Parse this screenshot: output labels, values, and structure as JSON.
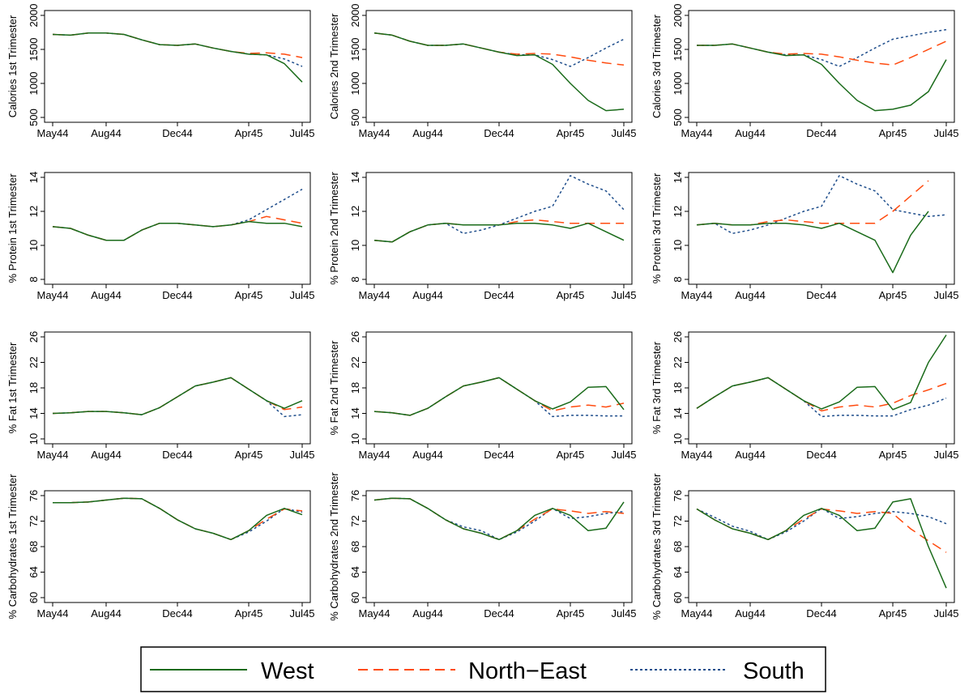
{
  "chart_data": {
    "type": "line",
    "x": [
      "May44",
      "Jun44",
      "Jul44",
      "Aug44",
      "Sep44",
      "Oct44",
      "Nov44",
      "Dec44",
      "Jan45",
      "Feb45",
      "Mar45",
      "Apr45",
      "May45",
      "Jun45",
      "Jul45"
    ],
    "x_ticks": [
      "May44",
      "Aug44",
      "Dec44",
      "Apr45",
      "Jul45"
    ],
    "legend": {
      "placement": "bottom",
      "entries": [
        {
          "name": "West",
          "color": "#1a6b1a",
          "dash": "solid"
        },
        {
          "name": "North−East",
          "color": "#ff4b0f",
          "dash": "long-dash"
        },
        {
          "name": "South",
          "color": "#1f4e8c",
          "dash": "dotted"
        }
      ]
    },
    "panels": [
      {
        "ylabel": "Calories 1st Trimester",
        "ylim": [
          500,
          2000
        ],
        "yticks": [
          500,
          1000,
          1500,
          2000
        ],
        "series": [
          {
            "name": "West",
            "values": [
              1720,
              1710,
              1740,
              1740,
              1720,
              1640,
              1570,
              1560,
              1580,
              1520,
              1470,
              1430,
              1420,
              1290,
              1020
            ]
          },
          {
            "name": "North−East",
            "values": [
              1720,
              1710,
              1740,
              1740,
              1720,
              1640,
              1570,
              1560,
              1580,
              1520,
              1470,
              1440,
              1450,
              1430,
              1380
            ]
          },
          {
            "name": "South",
            "values": [
              1720,
              1710,
              1740,
              1740,
              1720,
              1640,
              1570,
              1560,
              1580,
              1520,
              1470,
              1430,
              1420,
              1360,
              1250
            ]
          }
        ]
      },
      {
        "ylabel": "Calories 2nd Trimester",
        "ylim": [
          500,
          2000
        ],
        "yticks": [
          500,
          1000,
          1500,
          2000
        ],
        "series": [
          {
            "name": "West",
            "values": [
              1740,
              1710,
              1620,
              1560,
              1560,
              1580,
              1520,
              1460,
              1410,
              1420,
              1280,
              1000,
              750,
              600,
              620
            ]
          },
          {
            "name": "North−East",
            "values": [
              1740,
              1710,
              1620,
              1560,
              1560,
              1580,
              1520,
              1460,
              1430,
              1440,
              1430,
              1390,
              1340,
              1300,
              1270
            ]
          },
          {
            "name": "South",
            "values": [
              1740,
              1710,
              1620,
              1560,
              1560,
              1580,
              1520,
              1460,
              1420,
              1420,
              1350,
              1250,
              1380,
              1520,
              1650
            ]
          }
        ]
      },
      {
        "ylabel": "Calories 3rd Trimester",
        "ylim": [
          500,
          2000
        ],
        "yticks": [
          500,
          1000,
          1500,
          2000
        ],
        "series": [
          {
            "name": "West",
            "values": [
              1560,
              1560,
              1580,
              1520,
              1460,
              1410,
              1420,
              1280,
              1000,
              750,
              600,
              620,
              680,
              880,
              1350
            ]
          },
          {
            "name": "North−East",
            "values": [
              1560,
              1560,
              1580,
              1520,
              1460,
              1430,
              1440,
              1430,
              1390,
              1340,
              1300,
              1270,
              1380,
              1500,
              1620
            ]
          },
          {
            "name": "South",
            "values": [
              1560,
              1560,
              1580,
              1520,
              1460,
              1420,
              1420,
              1350,
              1250,
              1380,
              1520,
              1650,
              1700,
              1750,
              1790
            ]
          }
        ]
      },
      {
        "ylabel": "% Protein 1st Trimester",
        "ylim": [
          8,
          14
        ],
        "yticks": [
          8,
          10,
          12,
          14
        ],
        "series": [
          {
            "name": "West",
            "values": [
              11.1,
              11.0,
              10.6,
              10.3,
              10.3,
              10.9,
              11.3,
              11.3,
              11.2,
              11.1,
              11.2,
              11.4,
              11.3,
              11.3,
              11.1
            ]
          },
          {
            "name": "North−East",
            "values": [
              11.1,
              11.0,
              10.6,
              10.3,
              10.3,
              10.9,
              11.3,
              11.3,
              11.2,
              11.1,
              11.2,
              11.4,
              11.7,
              11.5,
              11.3
            ]
          },
          {
            "name": "South",
            "values": [
              11.1,
              11.0,
              10.6,
              10.3,
              10.3,
              10.9,
              11.3,
              11.3,
              11.2,
              11.1,
              11.2,
              11.5,
              12.1,
              12.7,
              13.3
            ]
          }
        ]
      },
      {
        "ylabel": "% Protein 2nd Trimester",
        "ylim": [
          8,
          14
        ],
        "yticks": [
          8,
          10,
          12,
          14
        ],
        "series": [
          {
            "name": "West",
            "values": [
              10.3,
              10.2,
              10.8,
              11.2,
              11.3,
              11.2,
              11.2,
              11.2,
              11.3,
              11.3,
              11.2,
              11.0,
              11.3,
              10.8,
              10.3
            ]
          },
          {
            "name": "North−East",
            "values": [
              10.3,
              10.2,
              10.8,
              11.2,
              11.3,
              11.2,
              11.2,
              11.2,
              11.4,
              11.5,
              11.4,
              11.3,
              11.3,
              11.3,
              11.3
            ]
          },
          {
            "name": "South",
            "values": [
              10.3,
              10.2,
              10.8,
              11.2,
              11.3,
              10.7,
              10.9,
              11.2,
              11.6,
              12.0,
              12.3,
              14.1,
              13.6,
              13.2,
              12.1
            ]
          }
        ]
      },
      {
        "ylabel": "% Protein 3rd Trimester",
        "ylim": [
          8,
          14
        ],
        "yticks": [
          8,
          10,
          12,
          14
        ],
        "series": [
          {
            "name": "West",
            "values": [
              11.2,
              11.3,
              11.2,
              11.2,
              11.3,
              11.3,
              11.2,
              11.0,
              11.3,
              10.8,
              10.3,
              8.4,
              10.6,
              12.0,
              null
            ]
          },
          {
            "name": "North−East",
            "values": [
              11.2,
              11.3,
              11.2,
              11.2,
              11.4,
              11.5,
              11.4,
              11.3,
              11.3,
              11.3,
              11.3,
              12.0,
              12.9,
              13.8,
              null
            ]
          },
          {
            "name": "South",
            "values": [
              11.2,
              11.3,
              10.7,
              10.9,
              11.2,
              11.6,
              12.0,
              12.3,
              14.1,
              13.6,
              13.2,
              12.1,
              11.9,
              11.7,
              11.8
            ]
          }
        ]
      },
      {
        "ylabel": "% Fat 1st Trimester",
        "ylim": [
          10,
          26
        ],
        "yticks": [
          10,
          14,
          18,
          22,
          26
        ],
        "series": [
          {
            "name": "West",
            "values": [
              14.0,
              14.1,
              14.3,
              14.3,
              14.1,
              13.8,
              14.9,
              16.6,
              18.3,
              18.9,
              19.6,
              17.8,
              16.0,
              14.8,
              16.0
            ]
          },
          {
            "name": "North−East",
            "values": [
              14.0,
              14.1,
              14.3,
              14.3,
              14.1,
              13.8,
              14.9,
              16.6,
              18.3,
              18.9,
              19.6,
              17.8,
              16.0,
              14.6,
              15.0
            ]
          },
          {
            "name": "South",
            "values": [
              14.0,
              14.1,
              14.3,
              14.3,
              14.1,
              13.8,
              14.9,
              16.6,
              18.3,
              18.9,
              19.6,
              17.8,
              16.0,
              13.5,
              13.8
            ]
          }
        ]
      },
      {
        "ylabel": "% Fat 2nd Trimester",
        "ylim": [
          10,
          26
        ],
        "yticks": [
          10,
          14,
          18,
          22,
          26
        ],
        "series": [
          {
            "name": "West",
            "values": [
              14.3,
              14.1,
              13.7,
              14.8,
              16.6,
              18.3,
              18.9,
              19.6,
              17.8,
              16.0,
              14.7,
              15.8,
              18.1,
              18.2,
              14.6
            ]
          },
          {
            "name": "North−East",
            "values": [
              14.3,
              14.1,
              13.7,
              14.8,
              16.6,
              18.3,
              18.9,
              19.6,
              17.8,
              16.0,
              14.4,
              15.0,
              15.3,
              15.0,
              15.6
            ]
          },
          {
            "name": "South",
            "values": [
              14.3,
              14.1,
              13.7,
              14.8,
              16.6,
              18.3,
              18.9,
              19.6,
              17.8,
              16.0,
              13.5,
              13.7,
              13.7,
              13.6,
              13.6
            ]
          }
        ]
      },
      {
        "ylabel": "% Fat 3rd Trimester",
        "ylim": [
          10,
          26
        ],
        "yticks": [
          10,
          14,
          18,
          22,
          26
        ],
        "series": [
          {
            "name": "West",
            "values": [
              14.8,
              16.6,
              18.3,
              18.9,
              19.6,
              17.8,
              16.0,
              14.7,
              15.8,
              18.1,
              18.2,
              14.6,
              15.7,
              22.0,
              26.3
            ]
          },
          {
            "name": "North−East",
            "values": [
              14.8,
              16.6,
              18.3,
              18.9,
              19.6,
              17.8,
              16.0,
              14.4,
              15.0,
              15.3,
              15.0,
              15.6,
              16.8,
              17.7,
              18.7
            ]
          },
          {
            "name": "South",
            "values": [
              14.8,
              16.6,
              18.3,
              18.9,
              19.6,
              17.8,
              16.0,
              13.5,
              13.7,
              13.7,
              13.6,
              13.6,
              14.6,
              15.3,
              16.4
            ]
          }
        ]
      },
      {
        "ylabel": "% Carbohydrates 1st Trimester",
        "ylim": [
          60,
          76
        ],
        "yticks": [
          60,
          64,
          68,
          72,
          76
        ],
        "series": [
          {
            "name": "West",
            "values": [
              74.9,
              74.9,
              75.0,
              75.3,
              75.6,
              75.5,
              74.0,
              72.2,
              70.8,
              70.1,
              69.1,
              70.5,
              72.9,
              74.0,
              73.0
            ]
          },
          {
            "name": "North−East",
            "values": [
              74.9,
              74.9,
              75.0,
              75.3,
              75.6,
              75.5,
              74.0,
              72.2,
              70.8,
              70.1,
              69.1,
              70.5,
              72.3,
              73.9,
              73.6
            ]
          },
          {
            "name": "South",
            "values": [
              74.9,
              74.9,
              75.0,
              75.3,
              75.6,
              75.5,
              74.0,
              72.2,
              70.8,
              70.1,
              69.1,
              70.3,
              72.0,
              74.0,
              73.4
            ]
          }
        ]
      },
      {
        "ylabel": "% Carbohydrates 2nd Trimester",
        "ylim": [
          60,
          76
        ],
        "yticks": [
          60,
          64,
          68,
          72,
          76
        ],
        "series": [
          {
            "name": "West",
            "values": [
              75.3,
              75.6,
              75.5,
              74.0,
              72.2,
              70.8,
              70.1,
              69.1,
              70.5,
              72.9,
              74.0,
              72.9,
              70.5,
              70.9,
              75.0
            ]
          },
          {
            "name": "North−East",
            "values": [
              75.3,
              75.6,
              75.5,
              74.0,
              72.2,
              70.8,
              70.1,
              69.1,
              70.5,
              72.3,
              73.9,
              73.6,
              73.2,
              73.5,
              73.2
            ]
          },
          {
            "name": "South",
            "values": [
              75.3,
              75.6,
              75.5,
              74.0,
              72.2,
              71.1,
              70.5,
              69.1,
              70.3,
              72.0,
              74.0,
              72.4,
              72.7,
              73.2,
              73.5
            ]
          }
        ]
      },
      {
        "ylabel": "% Carbohydrates 3rd Trimester",
        "ylim": [
          60,
          76
        ],
        "yticks": [
          60,
          64,
          68,
          72,
          76
        ],
        "series": [
          {
            "name": "West",
            "values": [
              73.9,
              72.2,
              70.8,
              70.1,
              69.1,
              70.5,
              72.9,
              74.0,
              72.9,
              70.5,
              70.9,
              75.0,
              75.5,
              68.0,
              61.5
            ]
          },
          {
            "name": "North−East",
            "values": [
              73.9,
              72.2,
              70.8,
              70.1,
              69.1,
              70.5,
              72.3,
              73.9,
              73.6,
              73.2,
              73.5,
              73.2,
              70.8,
              68.9,
              67.1
            ]
          },
          {
            "name": "South",
            "values": [
              73.9,
              72.6,
              71.2,
              70.4,
              69.1,
              70.3,
              72.0,
              74.0,
              72.4,
              72.7,
              73.2,
              73.5,
              73.2,
              72.7,
              71.6
            ]
          }
        ]
      }
    ]
  }
}
